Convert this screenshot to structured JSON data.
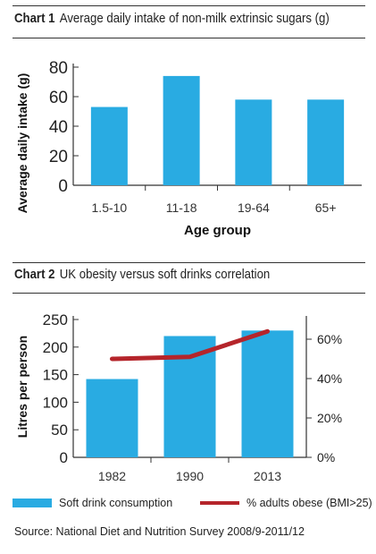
{
  "colors": {
    "bar": "#29abe2",
    "line": "#b5252b",
    "axis": "#333333"
  },
  "chart_data": [
    {
      "type": "bar",
      "label": "Chart 1",
      "title": "Average daily intake of non-milk extrinsic sugars (g)",
      "xlabel": "Age group",
      "ylabel": "Average daily intake (g)",
      "categories": [
        "1.5-10",
        "11-18",
        "19-64",
        "65+"
      ],
      "values": [
        53,
        74,
        58,
        58
      ],
      "ylim": [
        0,
        80
      ],
      "yticks": [
        "0",
        "20",
        "40",
        "60",
        "80"
      ],
      "grid": false
    },
    {
      "type": "bar+line",
      "label": "Chart 2",
      "title": "UK obesity versus soft drinks correlation",
      "ylabel": "Litres per person",
      "categories": [
        "1982",
        "1990",
        "2013"
      ],
      "series": [
        {
          "name": "Soft drink consumption",
          "type": "bar",
          "axis": "left",
          "values": [
            142,
            220,
            230
          ]
        },
        {
          "name": "% adults obese (BMI>25)",
          "type": "line",
          "axis": "right",
          "values": [
            50,
            51,
            64
          ]
        }
      ],
      "ylim_left": [
        0,
        250
      ],
      "ylim_right": [
        0,
        70
      ],
      "yticks_left": [
        "0",
        "50",
        "100",
        "150",
        "200",
        "250"
      ],
      "yticks_right": [
        "0%",
        "20%",
        "40%",
        "60%"
      ],
      "legend_position": "bottom",
      "grid": false
    }
  ],
  "source": "Source: National Diet and Nutrition Survey 2008/9-2011/12"
}
